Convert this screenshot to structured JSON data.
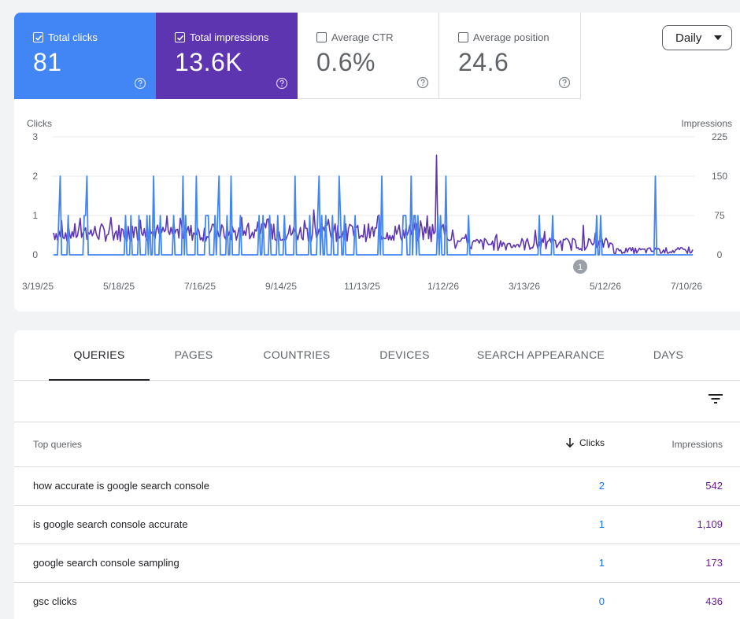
{
  "metrics": {
    "clicks": {
      "label": "Total clicks",
      "value": "81",
      "checked": true,
      "color": "#4285f4"
    },
    "impressions": {
      "label": "Total impressions",
      "value": "13.6K",
      "checked": true,
      "color": "#5e35b1"
    },
    "ctr": {
      "label": "Average CTR",
      "value": "0.6%",
      "checked": false
    },
    "position": {
      "label": "Average position",
      "value": "24.6",
      "checked": false
    }
  },
  "period_select": {
    "value": "Daily"
  },
  "chart_data": {
    "type": "line",
    "left_axis_label": "Clicks",
    "right_axis_label": "Impressions",
    "left_ticks": [
      "0",
      "1",
      "2",
      "3"
    ],
    "right_ticks": [
      "0",
      "75",
      "150",
      "225"
    ],
    "ylim_left": [
      0,
      3
    ],
    "ylim_right": [
      0,
      225
    ],
    "x_ticks": [
      "3/19/25",
      "5/18/25",
      "7/16/25",
      "9/14/25",
      "11/13/25",
      "1/12/26",
      "3/13/26",
      "5/12/26",
      "7/10/26"
    ],
    "annotation": "1",
    "series": [
      {
        "name": "Clicks",
        "color": "#4285f4",
        "axis": "left"
      },
      {
        "name": "Impressions",
        "color": "#5e35b1",
        "axis": "right"
      }
    ]
  },
  "tabs": [
    "QUERIES",
    "PAGES",
    "COUNTRIES",
    "DEVICES",
    "SEARCH APPEARANCE",
    "DAYS"
  ],
  "table": {
    "headers": {
      "query": "Top queries",
      "clicks": "Clicks",
      "impressions": "Impressions"
    },
    "rows": [
      {
        "query": "how accurate is google search console",
        "clicks": "2",
        "impressions": "542"
      },
      {
        "query": "is google search console accurate",
        "clicks": "1",
        "impressions": "1,109"
      },
      {
        "query": "google search console sampling",
        "clicks": "1",
        "impressions": "173"
      },
      {
        "query": "gsc clicks",
        "clicks": "0",
        "impressions": "436"
      }
    ]
  }
}
